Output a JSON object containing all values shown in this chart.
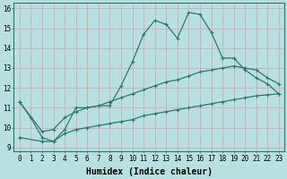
{
  "title": "",
  "xlabel": "Humidex (Indice chaleur)",
  "bg_color": "#b8e0e0",
  "grid_color": "#d8a8a8",
  "line_color": "#2a7a6a",
  "xlim": [
    -0.5,
    23.5
  ],
  "ylim": [
    8.8,
    16.3
  ],
  "xticks": [
    0,
    1,
    2,
    3,
    4,
    5,
    6,
    7,
    8,
    9,
    10,
    11,
    12,
    13,
    14,
    15,
    16,
    17,
    18,
    19,
    20,
    21,
    22,
    23
  ],
  "yticks": [
    9,
    10,
    11,
    12,
    13,
    14,
    15,
    16
  ],
  "series1_x": [
    0,
    1,
    2,
    3,
    4,
    5,
    6,
    7,
    8,
    9,
    10,
    11,
    12,
    13,
    14,
    15,
    16,
    17,
    18,
    19,
    20,
    21,
    22,
    23
  ],
  "series1_y": [
    11.3,
    10.5,
    9.5,
    9.3,
    9.9,
    11.0,
    11.0,
    11.1,
    11.1,
    12.1,
    13.3,
    14.7,
    15.4,
    15.2,
    14.5,
    15.8,
    15.7,
    14.8,
    13.5,
    13.5,
    12.9,
    12.5,
    12.2,
    11.7
  ],
  "series2_x": [
    0,
    2,
    3,
    4,
    5,
    6,
    7,
    8,
    9,
    10,
    11,
    12,
    13,
    14,
    15,
    16,
    17,
    18,
    19,
    20,
    21,
    22,
    23
  ],
  "series2_y": [
    11.3,
    9.8,
    9.9,
    10.5,
    10.8,
    11.0,
    11.1,
    11.3,
    11.5,
    11.7,
    11.9,
    12.1,
    12.3,
    12.4,
    12.6,
    12.8,
    12.9,
    13.0,
    13.1,
    13.0,
    12.9,
    12.5,
    12.2
  ],
  "series3_x": [
    0,
    2,
    3,
    4,
    5,
    6,
    7,
    8,
    9,
    10,
    11,
    12,
    13,
    14,
    15,
    16,
    17,
    18,
    19,
    20,
    21,
    22,
    23
  ],
  "series3_y": [
    9.5,
    9.3,
    9.3,
    9.7,
    9.9,
    10.0,
    10.1,
    10.2,
    10.3,
    10.4,
    10.6,
    10.7,
    10.8,
    10.9,
    11.0,
    11.1,
    11.2,
    11.3,
    11.4,
    11.5,
    11.6,
    11.65,
    11.7
  ],
  "marker": "+",
  "markersize": 3.0,
  "linewidth": 0.9,
  "xlabel_fontsize": 7,
  "tick_fontsize": 5.5
}
